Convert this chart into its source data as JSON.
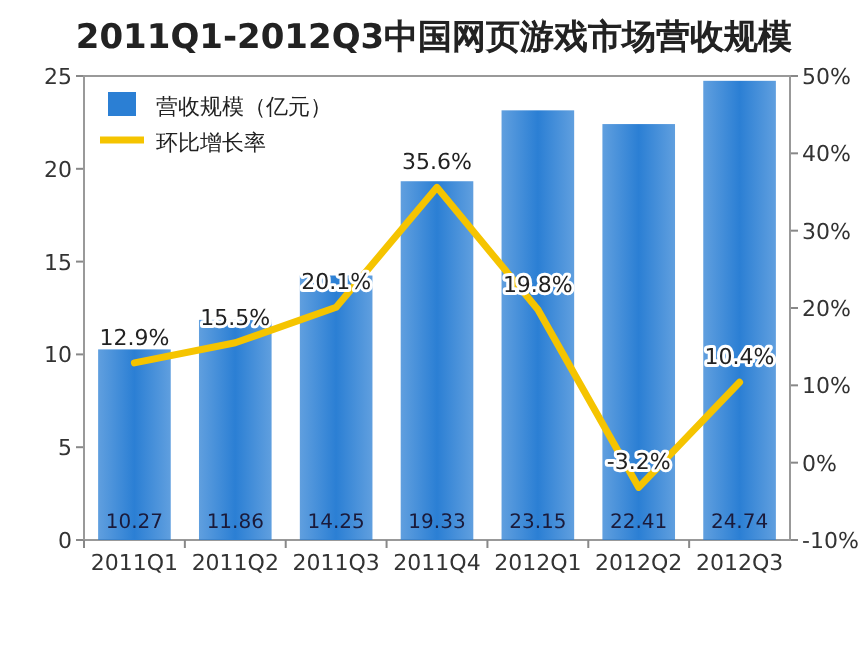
{
  "chart_data": {
    "type": "bar",
    "title": "2011Q1-2012Q3中国网页游戏市场营收规模",
    "categories": [
      "2011Q1",
      "2011Q2",
      "2011Q3",
      "2011Q4",
      "2012Q1",
      "2012Q2",
      "2012Q3"
    ],
    "series": [
      {
        "name": "营收规模（亿元）",
        "color": "#2b7fd4",
        "values": [
          10.27,
          11.86,
          14.25,
          19.33,
          23.15,
          22.41,
          24.74
        ],
        "value_labels": [
          "10.27",
          "11.86",
          "14.25",
          "19.33",
          "23.15",
          "22.41",
          "24.74"
        ]
      },
      {
        "name": "环比增长率",
        "type": "line",
        "axis": "y2",
        "color": "#f5c400",
        "values": [
          12.9,
          15.5,
          20.1,
          35.6,
          19.8,
          -3.2,
          10.4
        ],
        "value_labels": [
          "12.9%",
          "15.5%",
          "20.1%",
          "35.6%",
          "19.8%",
          "-3.2%",
          "10.4%"
        ]
      }
    ],
    "ylim": [
      0,
      25
    ],
    "yticks": [
      0,
      5,
      10,
      15,
      20,
      25
    ],
    "y2lim": [
      -10,
      50
    ],
    "y2ticks": [
      {
        "value": -10,
        "label": "-10%"
      },
      {
        "value": 0,
        "label": "0%"
      },
      {
        "value": 10,
        "label": "10%"
      },
      {
        "value": 20,
        "label": "20%"
      },
      {
        "value": 30,
        "label": "30%"
      },
      {
        "value": 40,
        "label": "40%"
      },
      {
        "value": 50,
        "label": "50%"
      }
    ],
    "legend": "top left",
    "grid": false,
    "marker": "none",
    "line_style": "solid"
  }
}
